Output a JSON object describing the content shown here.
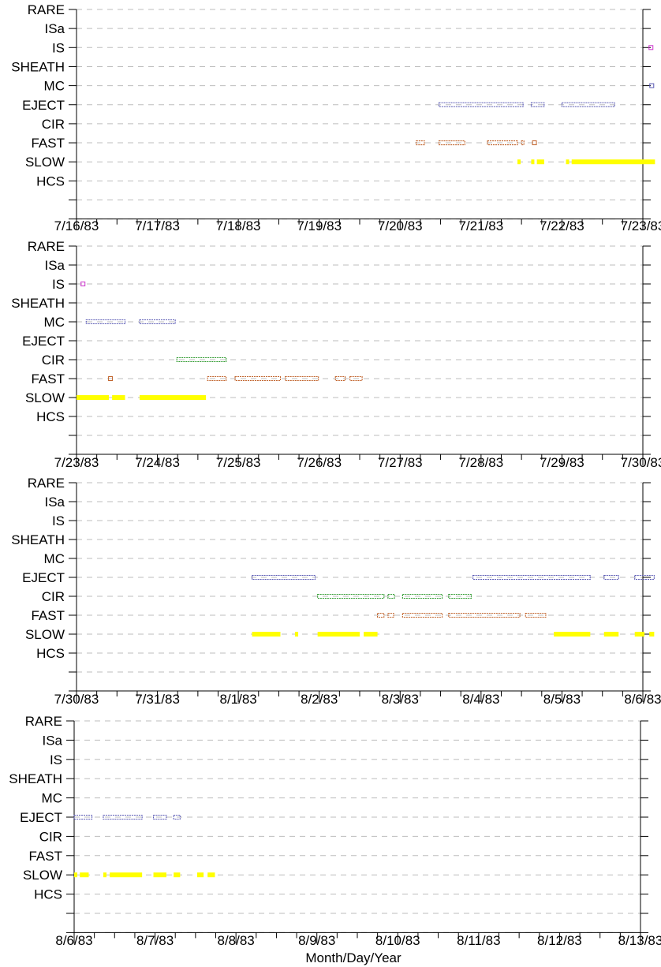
{
  "chart_data": {
    "type": "scatter",
    "xlabel": "Month/Day/Year",
    "categories": [
      "RARE",
      "ISa",
      "IS",
      "SHEATH",
      "MC",
      "EJECT",
      "CIR",
      "FAST",
      "SLOW",
      "HCS"
    ],
    "colors": {
      "IS": "#cc33cc",
      "MC": "#5a5ab4",
      "EJECT": "#5a5ab4",
      "CIR": "#2e9a2e",
      "FAST": "#c0622a",
      "SLOW": "#ffff00"
    },
    "panels": [
      {
        "x_tick_labels": [
          "7/16/83",
          "7/17/83",
          "7/18/83",
          "7/19/83",
          "7/20/83",
          "7/21/83",
          "7/22/83",
          "7/23/83"
        ],
        "series": [
          {
            "category": "IS",
            "intervals": [
              [
                7.1,
                7.1
              ]
            ]
          },
          {
            "category": "MC",
            "intervals": [
              [
                7.11,
                7.11
              ]
            ]
          },
          {
            "category": "EJECT",
            "intervals": [
              [
                4.48,
                5.52
              ],
              [
                5.62,
                5.78
              ],
              [
                6.0,
                6.65
              ]
            ]
          },
          {
            "category": "FAST",
            "intervals": [
              [
                4.2,
                4.3
              ],
              [
                4.48,
                4.8
              ],
              [
                5.08,
                5.45
              ],
              [
                5.5,
                5.53
              ],
              [
                5.66,
                5.68
              ]
            ]
          },
          {
            "category": "SLOW",
            "intervals": [
              [
                5.45,
                5.48
              ],
              [
                5.62,
                5.65
              ],
              [
                5.69,
                5.78
              ],
              [
                6.05,
                6.08
              ],
              [
                6.12,
                7.15
              ]
            ]
          }
        ]
      },
      {
        "x_tick_labels": [
          "7/23/83",
          "7/24/83",
          "7/25/83",
          "7/26/83",
          "7/27/83",
          "7/28/83",
          "7/29/83",
          "7/30/83"
        ],
        "series": [
          {
            "category": "IS",
            "intervals": [
              [
                0.08,
                0.08
              ]
            ]
          },
          {
            "category": "MC",
            "intervals": [
              [
                0.12,
                0.6
              ],
              [
                0.78,
                1.22
              ]
            ]
          },
          {
            "category": "CIR",
            "intervals": [
              [
                1.24,
                1.85
              ]
            ]
          },
          {
            "category": "FAST",
            "intervals": [
              [
                0.42,
                0.42
              ],
              [
                1.62,
                1.85
              ],
              [
                1.96,
                2.52
              ],
              [
                2.58,
                2.99
              ],
              [
                3.2,
                3.32
              ],
              [
                3.38,
                3.53
              ]
            ]
          },
          {
            "category": "SLOW",
            "intervals": [
              [
                0.0,
                0.4
              ],
              [
                0.44,
                0.6
              ],
              [
                0.78,
                1.6
              ]
            ]
          }
        ]
      },
      {
        "x_tick_labels": [
          "7/30/83",
          "7/31/83",
          "8/1/83",
          "8/2/83",
          "8/3/83",
          "8/4/83",
          "8/5/83",
          "8/6/83"
        ],
        "series": [
          {
            "category": "EJECT",
            "intervals": [
              [
                2.17,
                2.95
              ],
              [
                4.9,
                6.35
              ],
              [
                6.52,
                6.7
              ],
              [
                6.9,
                7.14
              ]
            ]
          },
          {
            "category": "CIR",
            "intervals": [
              [
                2.98,
                3.8
              ],
              [
                3.85,
                3.93
              ],
              [
                4.03,
                4.52
              ],
              [
                4.6,
                4.88
              ]
            ]
          },
          {
            "category": "FAST",
            "intervals": [
              [
                3.72,
                3.8
              ],
              [
                3.85,
                3.92
              ],
              [
                4.03,
                4.52
              ],
              [
                4.6,
                5.48
              ],
              [
                5.55,
                5.8
              ]
            ]
          },
          {
            "category": "SLOW",
            "intervals": [
              [
                2.17,
                2.52
              ],
              [
                2.7,
                2.74
              ],
              [
                2.98,
                3.5
              ],
              [
                3.55,
                3.72
              ],
              [
                5.9,
                6.35
              ],
              [
                6.52,
                6.7
              ],
              [
                6.9,
                7.02
              ],
              [
                7.08,
                7.14
              ]
            ]
          }
        ]
      },
      {
        "x_tick_labels": [
          "8/6/83",
          "8/7/83",
          "8/8/83",
          "8/9/83",
          "8/10/83",
          "8/11/83",
          "8/12/83",
          "8/13/83"
        ],
        "series": [
          {
            "category": "EJECT",
            "intervals": [
              [
                0.0,
                0.22
              ],
              [
                0.36,
                0.84
              ],
              [
                0.98,
                1.14
              ],
              [
                1.23,
                1.31
              ]
            ]
          },
          {
            "category": "SLOW",
            "intervals": [
              [
                0.0,
                0.03
              ],
              [
                0.07,
                0.18
              ],
              [
                0.36,
                0.4
              ],
              [
                0.44,
                0.84
              ],
              [
                0.98,
                1.14
              ],
              [
                1.23,
                1.31
              ],
              [
                1.52,
                1.6
              ],
              [
                1.65,
                1.74
              ]
            ]
          }
        ]
      }
    ]
  }
}
